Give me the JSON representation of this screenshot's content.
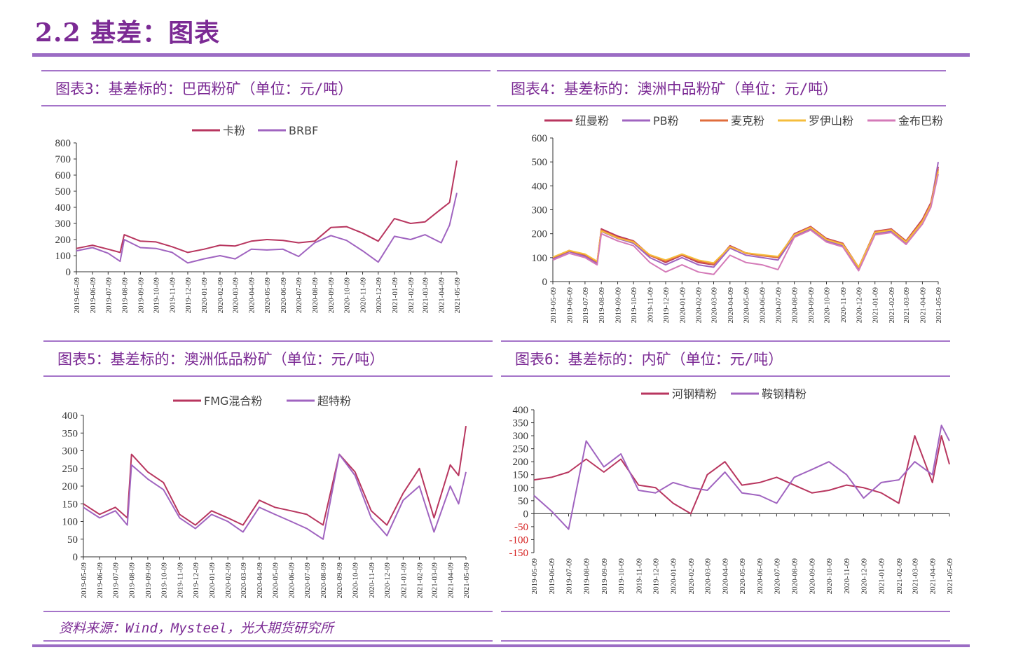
{
  "page": {
    "title": "2.2 基差：图表",
    "source": "资料来源：Wind，Mysteel，光大期货研究所"
  },
  "colors": {
    "accent": "#7b2a94",
    "rule": "#a574c9"
  },
  "dates": [
    "2019-05-09",
    "2019-06-09",
    "2019-07-09",
    "2019-08-09",
    "2019-09-09",
    "2019-10-09",
    "2019-11-09",
    "2019-12-09",
    "2020-01-09",
    "2020-02-09",
    "2020-03-09",
    "2020-04-09",
    "2020-05-09",
    "2020-06-09",
    "2020-07-09",
    "2020-08-09",
    "2020-09-09",
    "2020-10-09",
    "2020-11-09",
    "2020-12-09",
    "2021-01-09",
    "2021-02-09",
    "2021-03-09",
    "2021-04-09",
    "2021-05-09"
  ],
  "charts": [
    {
      "title": "图表3：基差标的：巴西粉矿（单位：元/吨）"
    },
    {
      "title": "图表4：基差标的：澳洲中品粉矿（单位：元/吨）"
    },
    {
      "title": "图表5：基差标的：澳洲低品粉矿（单位：元/吨）"
    },
    {
      "title": "图表6：基差标的：内矿（单位：元/吨）"
    }
  ],
  "chart_data": [
    {
      "type": "line",
      "x_type": "date",
      "xlabel": "",
      "ylabel": "",
      "ylim": [
        0,
        800
      ],
      "yticks": [
        0,
        100,
        200,
        300,
        400,
        500,
        600,
        700,
        800
      ],
      "legend": "top",
      "grid": false,
      "series": [
        {
          "name": "卡粉",
          "color": "#b8365f",
          "values": [
            145,
            165,
            140,
            120,
            230,
            190,
            185,
            155,
            120,
            140,
            165,
            160,
            190,
            200,
            195,
            180,
            190,
            275,
            280,
            240,
            190,
            330,
            300,
            310,
            390,
            430,
            690
          ]
        },
        {
          "name": "BRBF",
          "color": "#a064c0",
          "values": [
            130,
            150,
            115,
            65,
            200,
            150,
            145,
            120,
            55,
            80,
            100,
            80,
            140,
            135,
            140,
            95,
            180,
            225,
            195,
            130,
            60,
            220,
            200,
            230,
            180,
            290,
            490
          ]
        }
      ],
      "x": [
        "2019-05-09",
        "2019-06-09",
        "2019-07-09",
        "2019-08-01",
        "2019-08-09",
        "2019-09-09",
        "2019-10-09",
        "2019-11-09",
        "2019-12-09",
        "2020-01-09",
        "2020-02-09",
        "2020-03-09",
        "2020-04-09",
        "2020-05-09",
        "2020-06-09",
        "2020-07-09",
        "2020-08-09",
        "2020-09-09",
        "2020-10-09",
        "2020-11-09",
        "2020-12-09",
        "2021-01-09",
        "2021-02-09",
        "2021-03-09",
        "2021-04-09",
        "2021-04-25",
        "2021-05-09"
      ]
    },
    {
      "type": "line",
      "x_type": "date",
      "xlabel": "",
      "ylabel": "",
      "ylim": [
        0,
        600
      ],
      "yticks": [
        0,
        100,
        200,
        300,
        400,
        500,
        600
      ],
      "legend": "top",
      "grid": false,
      "x": [
        "2019-05-09",
        "2019-06-09",
        "2019-07-09",
        "2019-08-01",
        "2019-08-09",
        "2019-09-09",
        "2019-10-09",
        "2019-11-09",
        "2019-12-09",
        "2020-01-09",
        "2020-02-09",
        "2020-03-09",
        "2020-04-09",
        "2020-05-09",
        "2020-06-09",
        "2020-07-09",
        "2020-08-09",
        "2020-09-09",
        "2020-10-09",
        "2020-11-09",
        "2020-12-09",
        "2021-01-09",
        "2021-02-09",
        "2021-03-09",
        "2021-04-09",
        "2021-04-25",
        "2021-05-09"
      ],
      "series": [
        {
          "name": "纽曼粉",
          "color": "#b8365f",
          "values": [
            100,
            130,
            110,
            80,
            220,
            190,
            170,
            110,
            80,
            110,
            80,
            70,
            150,
            120,
            110,
            100,
            200,
            230,
            180,
            160,
            60,
            210,
            220,
            170,
            260,
            330,
            480
          ]
        },
        {
          "name": "PB粉",
          "color": "#a064c0",
          "values": [
            95,
            125,
            105,
            75,
            210,
            180,
            160,
            100,
            70,
            100,
            70,
            60,
            140,
            110,
            100,
            90,
            190,
            220,
            170,
            150,
            50,
            200,
            210,
            160,
            250,
            320,
            500
          ]
        },
        {
          "name": "麦克粉",
          "color": "#e06d3c",
          "values": [
            100,
            128,
            112,
            82,
            215,
            185,
            168,
            108,
            85,
            112,
            85,
            72,
            148,
            118,
            108,
            100,
            198,
            228,
            178,
            158,
            58,
            208,
            218,
            168,
            255,
            325,
            470
          ]
        },
        {
          "name": "罗伊山粉",
          "color": "#f5bd3c",
          "values": [
            102,
            130,
            115,
            85,
            212,
            182,
            165,
            112,
            90,
            115,
            90,
            78,
            145,
            120,
            112,
            105,
            195,
            225,
            175,
            155,
            60,
            205,
            215,
            165,
            250,
            320,
            460
          ]
        },
        {
          "name": "金布巴粉",
          "color": "#d47ab8",
          "values": [
            90,
            118,
            100,
            70,
            200,
            170,
            150,
            80,
            40,
            70,
            40,
            30,
            110,
            80,
            70,
            50,
            185,
            215,
            165,
            145,
            45,
            195,
            205,
            155,
            240,
            310,
            450
          ]
        }
      ]
    },
    {
      "type": "line",
      "x_type": "date",
      "xlabel": "",
      "ylabel": "",
      "ylim": [
        0,
        400
      ],
      "yticks": [
        0,
        50,
        100,
        150,
        200,
        250,
        300,
        350,
        400
      ],
      "legend": "top",
      "grid": false,
      "x": [
        "2019-05-09",
        "2019-06-09",
        "2019-07-09",
        "2019-08-01",
        "2019-08-09",
        "2019-09-09",
        "2019-10-09",
        "2019-11-09",
        "2019-12-09",
        "2020-01-09",
        "2020-02-09",
        "2020-03-09",
        "2020-04-09",
        "2020-05-09",
        "2020-06-09",
        "2020-07-09",
        "2020-08-09",
        "2020-09-09",
        "2020-10-09",
        "2020-11-09",
        "2020-12-09",
        "2021-01-09",
        "2021-02-09",
        "2021-03-09",
        "2021-04-09",
        "2021-04-25",
        "2021-05-09"
      ],
      "series": [
        {
          "name": "FMG混合粉",
          "color": "#b8365f",
          "values": [
            150,
            120,
            140,
            110,
            290,
            240,
            210,
            120,
            90,
            130,
            110,
            90,
            160,
            140,
            130,
            120,
            90,
            290,
            240,
            130,
            90,
            180,
            250,
            110,
            260,
            230,
            370
          ]
        },
        {
          "name": "超特粉",
          "color": "#a064c0",
          "values": [
            140,
            110,
            130,
            90,
            260,
            220,
            190,
            110,
            80,
            120,
            100,
            70,
            140,
            120,
            100,
            80,
            50,
            290,
            230,
            110,
            60,
            160,
            200,
            70,
            200,
            150,
            240
          ]
        }
      ]
    },
    {
      "type": "line",
      "x_type": "date",
      "xlabel": "",
      "ylabel": "",
      "ylim": [
        -150,
        400
      ],
      "yticks": [
        -150,
        -100,
        -50,
        0,
        50,
        100,
        150,
        200,
        250,
        300,
        350,
        400
      ],
      "legend": "top",
      "grid": false,
      "x": [
        "2019-05-09",
        "2019-06-09",
        "2019-07-09",
        "2019-08-09",
        "2019-09-09",
        "2019-10-09",
        "2019-11-09",
        "2019-12-09",
        "2020-01-09",
        "2020-02-09",
        "2020-03-09",
        "2020-04-09",
        "2020-05-09",
        "2020-06-09",
        "2020-07-09",
        "2020-08-09",
        "2020-09-09",
        "2020-10-09",
        "2020-11-09",
        "2020-12-09",
        "2021-01-09",
        "2021-02-09",
        "2021-03-09",
        "2021-04-09",
        "2021-04-25",
        "2021-05-09"
      ],
      "series": [
        {
          "name": "河钢精粉",
          "color": "#b8365f",
          "values": [
            130,
            140,
            160,
            210,
            160,
            210,
            110,
            100,
            40,
            0,
            150,
            200,
            110,
            120,
            140,
            110,
            80,
            90,
            110,
            100,
            80,
            40,
            300,
            120,
            300,
            190
          ]
        },
        {
          "name": "鞍钢精粉",
          "color": "#a064c0",
          "values": [
            70,
            10,
            -60,
            280,
            180,
            230,
            90,
            80,
            120,
            100,
            90,
            160,
            80,
            70,
            40,
            140,
            170,
            200,
            150,
            60,
            120,
            130,
            200,
            150,
            340,
            280
          ]
        }
      ]
    }
  ]
}
